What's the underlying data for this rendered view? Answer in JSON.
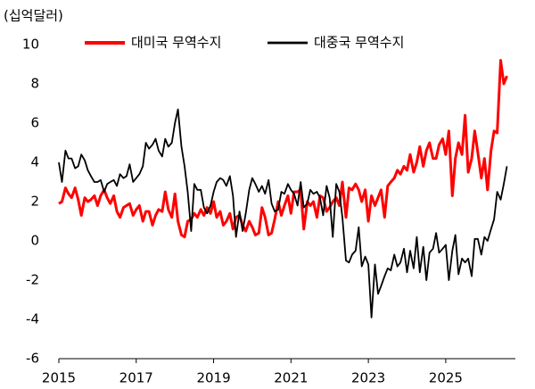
{
  "chart_data": {
    "type": "line",
    "unit_label": "(십억달러)",
    "x": [
      2015.0,
      2015.08,
      2015.17,
      2015.25,
      2015.33,
      2015.42,
      2015.5,
      2015.58,
      2015.67,
      2015.75,
      2015.83,
      2015.92,
      2016.0,
      2016.08,
      2016.17,
      2016.25,
      2016.33,
      2016.42,
      2016.5,
      2016.58,
      2016.67,
      2016.75,
      2016.83,
      2016.92,
      2017.0,
      2017.08,
      2017.17,
      2017.25,
      2017.33,
      2017.42,
      2017.5,
      2017.58,
      2017.67,
      2017.75,
      2017.83,
      2017.92,
      2018.0,
      2018.08,
      2018.17,
      2018.25,
      2018.33,
      2018.42,
      2018.5,
      2018.58,
      2018.67,
      2018.75,
      2018.83,
      2018.92,
      2019.0,
      2019.08,
      2019.17,
      2019.25,
      2019.33,
      2019.42,
      2019.5,
      2019.58,
      2019.67,
      2019.75,
      2019.83,
      2019.92,
      2020.0,
      2020.08,
      2020.17,
      2020.25,
      2020.33,
      2020.42,
      2020.5,
      2020.58,
      2020.67,
      2020.75,
      2020.83,
      2020.92,
      2021.0,
      2021.08,
      2021.17,
      2021.25,
      2021.33,
      2021.42,
      2021.5,
      2021.58,
      2021.67,
      2021.75,
      2021.83,
      2021.92,
      2022.0,
      2022.08,
      2022.17,
      2022.25,
      2022.33,
      2022.42,
      2022.5,
      2022.58,
      2022.67,
      2022.75,
      2022.83,
      2022.92,
      2023.0,
      2023.08,
      2023.17,
      2023.25,
      2023.33,
      2023.42,
      2023.5,
      2023.58,
      2023.67,
      2023.75,
      2023.83,
      2023.92,
      2024.0,
      2024.08,
      2024.17,
      2024.25,
      2024.33,
      2024.42,
      2024.5,
      2024.58,
      2024.67,
      2024.75,
      2024.83,
      2024.92,
      2025.0,
      2025.08,
      2025.17,
      2025.25,
      2025.33,
      2025.42,
      2025.5,
      2025.58,
      2025.67,
      2025.75,
      2025.83,
      2025.92,
      2026.0,
      2026.08,
      2026.17,
      2026.25,
      2026.33,
      2026.42,
      2026.5,
      2026.58
    ],
    "series": [
      {
        "name": "대미국 무역수지",
        "color": "#ff0000",
        "width": 3,
        "values": [
          1.9,
          2.0,
          2.7,
          2.4,
          2.2,
          2.7,
          2.1,
          1.3,
          2.2,
          2.0,
          2.1,
          2.3,
          1.8,
          2.3,
          2.6,
          2.2,
          1.9,
          2.3,
          1.5,
          1.2,
          1.7,
          1.8,
          1.9,
          1.3,
          1.6,
          1.8,
          1.0,
          1.5,
          1.5,
          0.8,
          1.3,
          1.6,
          1.5,
          2.5,
          1.6,
          1.2,
          2.4,
          1.0,
          0.3,
          0.2,
          1.0,
          1.1,
          1.4,
          1.2,
          1.6,
          1.3,
          1.7,
          1.4,
          2.0,
          1.2,
          1.5,
          0.8,
          1.0,
          1.4,
          0.6,
          1.2,
          1.3,
          0.8,
          0.5,
          1.0,
          0.7,
          0.3,
          0.4,
          1.7,
          1.2,
          0.3,
          0.4,
          1.1,
          2.0,
          1.3,
          1.8,
          2.3,
          1.4,
          2.5,
          2.5,
          2.6,
          0.6,
          2.0,
          1.8,
          2.0,
          1.2,
          2.3,
          2.2,
          1.5,
          1.7,
          2.0,
          2.2,
          1.8,
          3.0,
          1.2,
          2.7,
          2.6,
          2.9,
          2.6,
          2.0,
          2.6,
          1.0,
          2.3,
          1.8,
          2.2,
          2.6,
          1.2,
          2.8,
          3.0,
          3.2,
          3.6,
          3.4,
          3.8,
          3.6,
          4.4,
          3.5,
          4.0,
          4.8,
          3.8,
          4.6,
          5.0,
          4.2,
          4.2,
          4.9,
          5.2,
          4.4,
          5.6,
          2.3,
          4.2,
          5.0,
          4.4,
          6.4,
          3.5,
          4.2,
          5.6,
          4.5,
          3.2,
          4.2,
          2.6,
          4.6,
          5.6,
          5.5,
          9.2,
          8.0,
          8.4
        ]
      },
      {
        "name": "대중국 무역수지",
        "color": "#000000",
        "width": 1.8,
        "values": [
          4.0,
          3.0,
          4.6,
          4.2,
          4.2,
          3.7,
          3.8,
          4.4,
          4.1,
          3.6,
          3.3,
          3.0,
          3.0,
          3.1,
          2.5,
          2.9,
          3.0,
          3.1,
          2.8,
          3.4,
          3.2,
          3.3,
          3.9,
          3.0,
          3.2,
          3.4,
          3.8,
          5.0,
          4.7,
          4.9,
          5.2,
          4.6,
          4.3,
          5.2,
          4.8,
          5.0,
          6.0,
          6.7,
          4.8,
          3.8,
          2.5,
          0.5,
          2.9,
          2.6,
          2.6,
          1.7,
          1.4,
          1.8,
          2.5,
          3.0,
          3.2,
          3.1,
          2.8,
          3.3,
          2.3,
          0.2,
          1.5,
          0.5,
          1.4,
          2.6,
          3.2,
          2.9,
          2.5,
          2.8,
          2.4,
          3.1,
          1.9,
          1.5,
          1.6,
          2.5,
          2.4,
          2.9,
          2.6,
          2.4,
          1.8,
          3.0,
          1.7,
          1.9,
          2.6,
          2.4,
          2.5,
          2.2,
          1.3,
          2.8,
          2.2,
          0.2,
          2.9,
          2.5,
          1.2,
          -1.0,
          -1.1,
          -0.7,
          -0.5,
          0.7,
          -1.3,
          -0.8,
          -1.2,
          -3.9,
          -1.2,
          -2.7,
          -2.3,
          -1.8,
          -1.4,
          -1.5,
          -0.7,
          -1.3,
          -1.1,
          -0.4,
          -1.6,
          -0.5,
          -1.4,
          0.2,
          -1.6,
          -0.3,
          -2.0,
          -0.6,
          -0.4,
          0.4,
          -0.6,
          -0.4,
          -0.2,
          -2.0,
          -0.5,
          0.3,
          -1.7,
          -0.9,
          -1.1,
          -0.9,
          -1.8,
          0.1,
          0.1,
          -0.7,
          0.2,
          0.0,
          0.6,
          1.1,
          2.5,
          2.1,
          2.9,
          3.8
        ]
      }
    ],
    "xlim": [
      2015,
      2026.8
    ],
    "xticks": [
      2015,
      2017,
      2019,
      2021,
      2023,
      2025
    ],
    "ylim": [
      -6,
      10
    ],
    "yticks": [
      -6,
      -4,
      -2,
      0,
      2,
      4,
      6,
      8,
      10
    ],
    "grid": false
  }
}
